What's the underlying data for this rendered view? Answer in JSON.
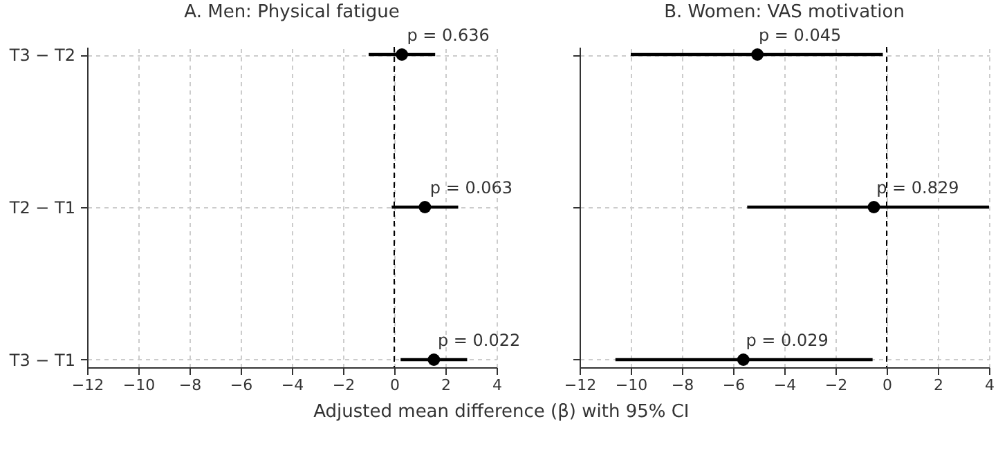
{
  "chart_data": [
    {
      "type": "scatter",
      "orientation": "horizontal",
      "title": "A. Men: Physical fatigue",
      "xlabel": "Adjusted mean difference (β) with 95% CI",
      "categories": [
        "T3 − T2",
        "T2 − T1",
        "T3 − T1"
      ],
      "series": [
        {
          "color": "#000000",
          "values": [
            0.3,
            1.2,
            1.55
          ],
          "errors": [
            [
              -1.0,
              1.6
            ],
            [
              -0.1,
              2.5
            ],
            [
              0.25,
              2.85
            ]
          ]
        }
      ],
      "xlim": [
        -12,
        4
      ],
      "xticks": [
        -12,
        -10,
        -8,
        -6,
        -4,
        -2,
        0,
        2,
        4
      ],
      "grid": true,
      "marker": "circle",
      "ref_lines": [
        {
          "axis": "x",
          "value": 0,
          "color": "#000000",
          "line_style": "dashed"
        }
      ],
      "annotations": [
        {
          "text": "p = 0.636",
          "x": 0.5,
          "y": "T3 − T2"
        },
        {
          "text": "p = 0.063",
          "x": 1.4,
          "y": "T2 − T1"
        },
        {
          "text": "p = 0.022",
          "x": 1.7,
          "y": "T3 − T1"
        }
      ]
    },
    {
      "type": "scatter",
      "orientation": "horizontal",
      "title": "B. Women: VAS motivation",
      "tick_labels": "x",
      "categories": [
        "T3 − T2",
        "T2 − T1",
        "T3 − T1"
      ],
      "series": [
        {
          "color": "#000000",
          "values": [
            -5.05,
            -0.5,
            -5.6
          ],
          "errors": [
            [
              -10.0,
              -0.15
            ],
            [
              -5.45,
              4.0
            ],
            [
              -10.6,
              -0.55
            ]
          ]
        }
      ],
      "xlim": [
        -12,
        4
      ],
      "xticks": [
        -12,
        -10,
        -8,
        -6,
        -4,
        -2,
        0,
        2,
        4
      ],
      "grid": true,
      "marker": "circle",
      "ref_lines": [
        {
          "axis": "x",
          "value": 0,
          "color": "#000000",
          "line_style": "dashed"
        }
      ],
      "annotations": [
        {
          "text": "p = 0.045",
          "x": -5.0,
          "y": "T3 − T2"
        },
        {
          "text": "p = 0.829",
          "x": -0.4,
          "y": "T2 − T1"
        },
        {
          "text": "p = 0.029",
          "x": -5.5,
          "y": "T3 − T1"
        }
      ]
    }
  ]
}
